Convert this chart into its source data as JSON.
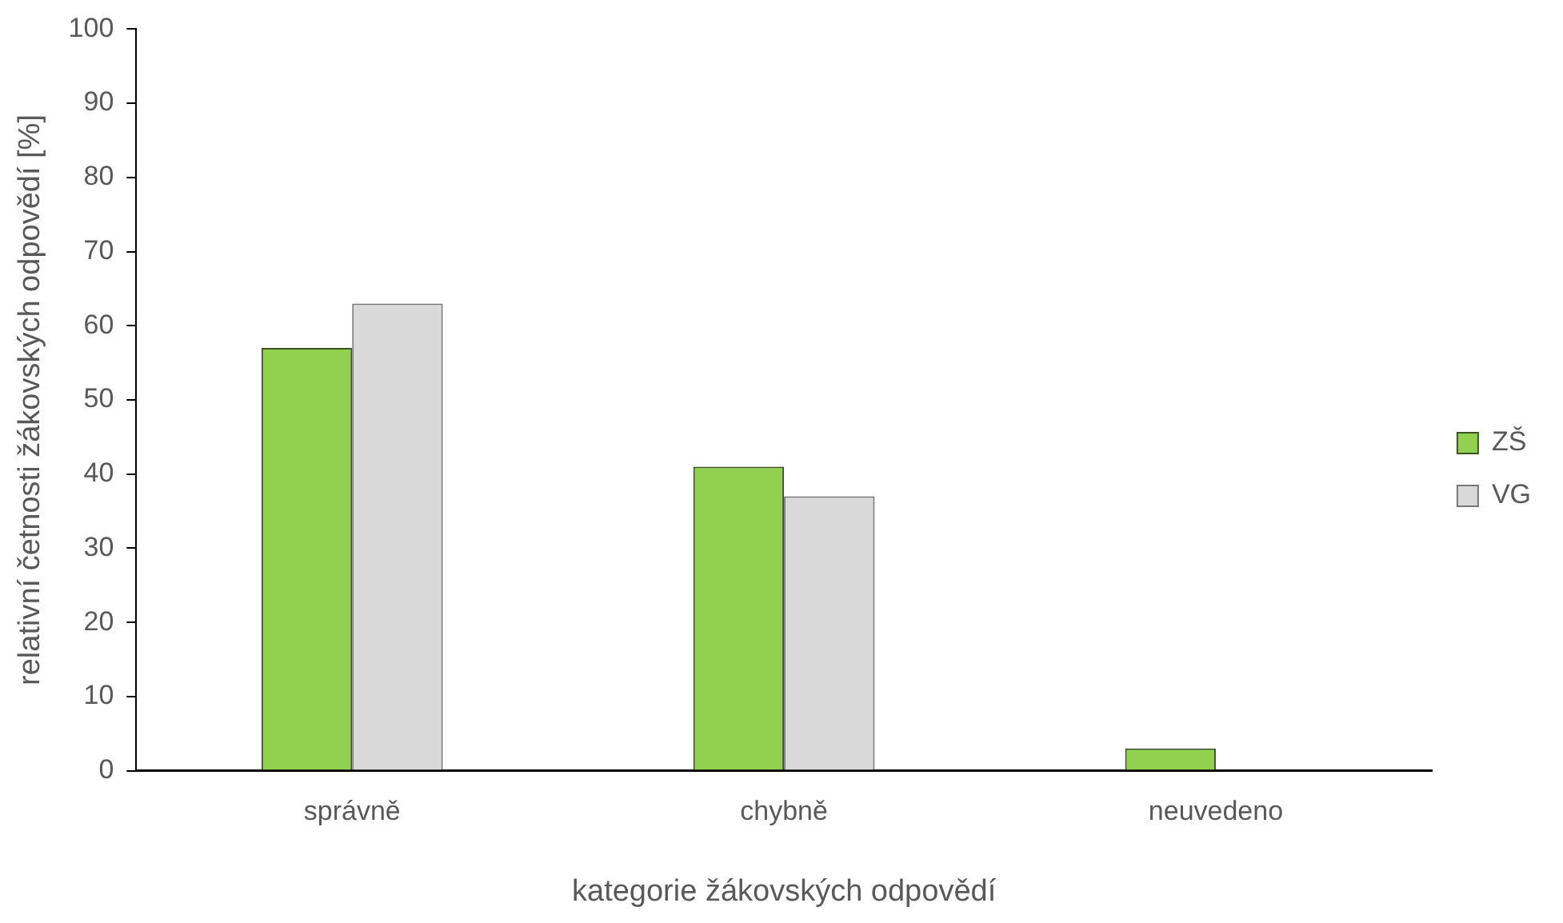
{
  "chart_data": {
    "type": "bar",
    "xlabel": "kategorie žákovských odpovědí",
    "ylabel": "relativní četnosti žákovských odpovědí [%]",
    "categories": [
      "správně",
      "chybně",
      "neuvedeno"
    ],
    "series": [
      {
        "name": "ZŠ",
        "color": "#92d050",
        "values": [
          57,
          41,
          3
        ]
      },
      {
        "name": "VG",
        "color": "#d9d9d9",
        "values": [
          63,
          37,
          0
        ]
      }
    ],
    "ylim": [
      0,
      100
    ],
    "yticks": [
      0,
      10,
      20,
      30,
      40,
      50,
      60,
      70,
      80,
      90,
      100
    ],
    "grid": false,
    "legend": "right"
  }
}
